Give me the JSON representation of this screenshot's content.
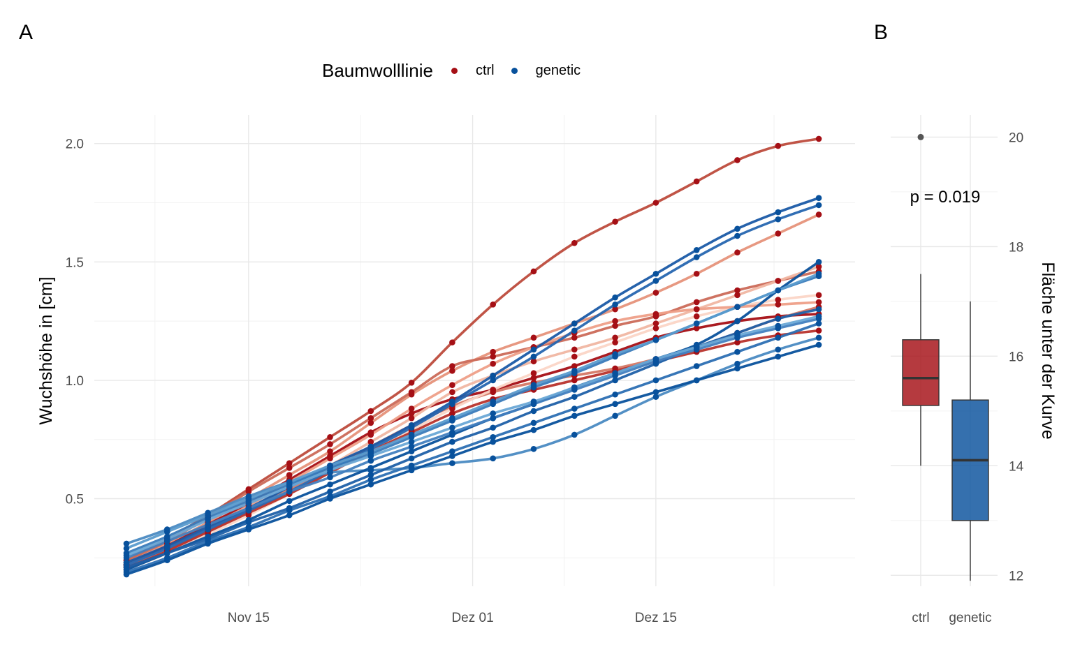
{
  "panels": {
    "a": "A",
    "b": "B"
  },
  "legend": {
    "title": "Baumwolllinie",
    "items": [
      {
        "label": "ctrl",
        "color": "#a50f15"
      },
      {
        "label": "genetic",
        "color": "#08519c"
      }
    ]
  },
  "chart_data": [
    {
      "type": "line",
      "panel": "A",
      "xlabel": "",
      "ylabel": "Wuchshöhe in [cm]",
      "x_ticks": [
        "Nov 15",
        "Dez 01",
        "Dez 15"
      ],
      "x": [
        "Nov 06",
        "Nov 09",
        "Nov 12",
        "Nov 15",
        "Nov 18",
        "Nov 21",
        "Nov 24",
        "Nov 27",
        "Nov 30",
        "Dez 03",
        "Dez 06",
        "Dez 09",
        "Dez 12",
        "Dez 15",
        "Dez 18",
        "Dez 21",
        "Dez 24",
        "Dez 27"
      ],
      "y_ticks": [
        0.5,
        1.0,
        1.5,
        2.0
      ],
      "ylim": [
        0.13,
        2.12
      ],
      "grid": true,
      "series": [
        {
          "group": "ctrl",
          "color": "#bd4b3c",
          "values": [
            0.24,
            0.33,
            0.43,
            0.54,
            0.65,
            0.76,
            0.87,
            0.99,
            1.16,
            1.32,
            1.46,
            1.58,
            1.67,
            1.75,
            1.84,
            1.93,
            1.99,
            2.02
          ]
        },
        {
          "group": "ctrl",
          "color": "#e6927a",
          "values": [
            0.23,
            0.31,
            0.4,
            0.5,
            0.6,
            0.7,
            0.82,
            0.94,
            1.04,
            1.12,
            1.18,
            1.24,
            1.3,
            1.37,
            1.45,
            1.54,
            1.62,
            1.7
          ]
        },
        {
          "group": "ctrl",
          "color": "#cb6a58",
          "values": [
            0.24,
            0.32,
            0.42,
            0.53,
            0.63,
            0.73,
            0.84,
            0.95,
            1.06,
            1.1,
            1.14,
            1.18,
            1.23,
            1.27,
            1.33,
            1.38,
            1.42,
            1.46
          ]
        },
        {
          "group": "ctrl",
          "color": "#a50f15",
          "values": [
            0.22,
            0.3,
            0.39,
            0.48,
            0.58,
            0.68,
            0.78,
            0.86,
            0.92,
            0.96,
            1.01,
            1.06,
            1.12,
            1.18,
            1.22,
            1.25,
            1.27,
            1.28
          ]
        },
        {
          "group": "ctrl",
          "color": "#f0b6a2",
          "values": [
            0.22,
            0.29,
            0.37,
            0.46,
            0.55,
            0.64,
            0.74,
            0.84,
            0.95,
            1.02,
            1.08,
            1.13,
            1.18,
            1.24,
            1.3,
            1.36,
            1.42,
            1.48
          ]
        },
        {
          "group": "ctrl",
          "color": "#d57865",
          "values": [
            0.21,
            0.28,
            0.36,
            0.45,
            0.54,
            0.63,
            0.72,
            0.81,
            0.89,
            0.95,
            0.99,
            1.02,
            1.05,
            1.09,
            1.14,
            1.2,
            1.26,
            1.31
          ]
        },
        {
          "group": "ctrl",
          "color": "#fbd5c6",
          "values": [
            0.2,
            0.27,
            0.35,
            0.43,
            0.52,
            0.61,
            0.7,
            0.79,
            0.88,
            0.96,
            1.03,
            1.1,
            1.16,
            1.22,
            1.27,
            1.31,
            1.34,
            1.36
          ]
        },
        {
          "group": "ctrl",
          "color": "#b8332c",
          "values": [
            0.21,
            0.28,
            0.36,
            0.44,
            0.52,
            0.61,
            0.7,
            0.78,
            0.86,
            0.92,
            0.96,
            1.0,
            1.04,
            1.08,
            1.12,
            1.16,
            1.19,
            1.21
          ]
        },
        {
          "group": "ctrl",
          "color": "#ee9f88",
          "values": [
            0.22,
            0.29,
            0.38,
            0.47,
            0.57,
            0.67,
            0.77,
            0.88,
            0.98,
            1.07,
            1.14,
            1.2,
            1.25,
            1.28,
            1.3,
            1.31,
            1.32,
            1.33
          ]
        },
        {
          "group": "genetic",
          "color": "#1a5aa6",
          "values": [
            0.23,
            0.3,
            0.38,
            0.46,
            0.55,
            0.64,
            0.72,
            0.81,
            0.91,
            1.02,
            1.13,
            1.24,
            1.35,
            1.45,
            1.55,
            1.64,
            1.71,
            1.77
          ]
        },
        {
          "group": "genetic",
          "color": "#2666b0",
          "values": [
            0.22,
            0.29,
            0.37,
            0.45,
            0.53,
            0.62,
            0.71,
            0.8,
            0.9,
            1.0,
            1.1,
            1.21,
            1.32,
            1.42,
            1.52,
            1.61,
            1.68,
            1.74
          ]
        },
        {
          "group": "genetic",
          "color": "#4a8ac2",
          "values": [
            0.31,
            0.37,
            0.44,
            0.51,
            0.57,
            0.61,
            0.62,
            0.63,
            0.65,
            0.67,
            0.71,
            0.77,
            0.85,
            0.93,
            1.0,
            1.07,
            1.13,
            1.18
          ]
        },
        {
          "group": "genetic",
          "color": "#08519c",
          "values": [
            0.2,
            0.27,
            0.34,
            0.41,
            0.49,
            0.56,
            0.63,
            0.7,
            0.77,
            0.84,
            0.9,
            0.97,
            1.03,
            1.09,
            1.15,
            1.25,
            1.38,
            1.5
          ]
        },
        {
          "group": "genetic",
          "color": "#3a7bbb",
          "values": [
            0.27,
            0.34,
            0.42,
            0.49,
            0.56,
            0.63,
            0.69,
            0.76,
            0.83,
            0.9,
            0.97,
            1.03,
            1.1,
            1.17,
            1.24,
            1.31,
            1.38,
            1.44
          ]
        },
        {
          "group": "genetic",
          "color": "#1f60a8",
          "values": [
            0.21,
            0.27,
            0.33,
            0.4,
            0.46,
            0.53,
            0.6,
            0.67,
            0.74,
            0.8,
            0.87,
            0.93,
            1.0,
            1.07,
            1.14,
            1.2,
            1.26,
            1.3
          ]
        },
        {
          "group": "genetic",
          "color": "#5a9bcd",
          "values": [
            0.29,
            0.36,
            0.43,
            0.5,
            0.57,
            0.64,
            0.7,
            0.77,
            0.84,
            0.91,
            0.98,
            1.04,
            1.11,
            1.17,
            1.24,
            1.31,
            1.38,
            1.45
          ]
        },
        {
          "group": "genetic",
          "color": "#2c6fb3",
          "values": [
            0.19,
            0.25,
            0.32,
            0.38,
            0.45,
            0.51,
            0.58,
            0.64,
            0.7,
            0.76,
            0.82,
            0.88,
            0.94,
            1.0,
            1.06,
            1.12,
            1.18,
            1.24
          ]
        },
        {
          "group": "genetic",
          "color": "#427fbf",
          "values": [
            0.25,
            0.32,
            0.39,
            0.46,
            0.53,
            0.59,
            0.66,
            0.72,
            0.78,
            0.84,
            0.9,
            0.96,
            1.02,
            1.08,
            1.13,
            1.18,
            1.22,
            1.26
          ]
        },
        {
          "group": "genetic",
          "color": "#08519c",
          "values": [
            0.18,
            0.24,
            0.31,
            0.37,
            0.43,
            0.5,
            0.56,
            0.62,
            0.68,
            0.74,
            0.79,
            0.85,
            0.9,
            0.95,
            1.0,
            1.05,
            1.1,
            1.15
          ]
        },
        {
          "group": "genetic",
          "color": "#6aa8d6",
          "values": [
            0.26,
            0.33,
            0.41,
            0.48,
            0.55,
            0.62,
            0.68,
            0.74,
            0.8,
            0.86,
            0.91,
            0.97,
            1.03,
            1.09,
            1.14,
            1.19,
            1.23,
            1.27
          ]
        }
      ]
    },
    {
      "type": "box",
      "panel": "B",
      "categories": [
        "ctrl",
        "genetic"
      ],
      "ylabel": "Fläche unter der Kurve",
      "y_ticks": [
        12,
        14,
        16,
        18,
        20
      ],
      "ylim": [
        11.8,
        20.4
      ],
      "annotation": "p = 0.019",
      "boxes": [
        {
          "category": "ctrl",
          "color": "#a50f15",
          "whisker_low": 14.0,
          "q1": 15.1,
          "median": 15.6,
          "q3": 16.3,
          "whisker_high": 17.5,
          "outliers": [
            20.0
          ]
        },
        {
          "category": "genetic",
          "color": "#08519c",
          "whisker_low": 11.9,
          "q1": 13.0,
          "median": 14.1,
          "q3": 15.2,
          "whisker_high": 17.0,
          "outliers": []
        }
      ]
    }
  ]
}
